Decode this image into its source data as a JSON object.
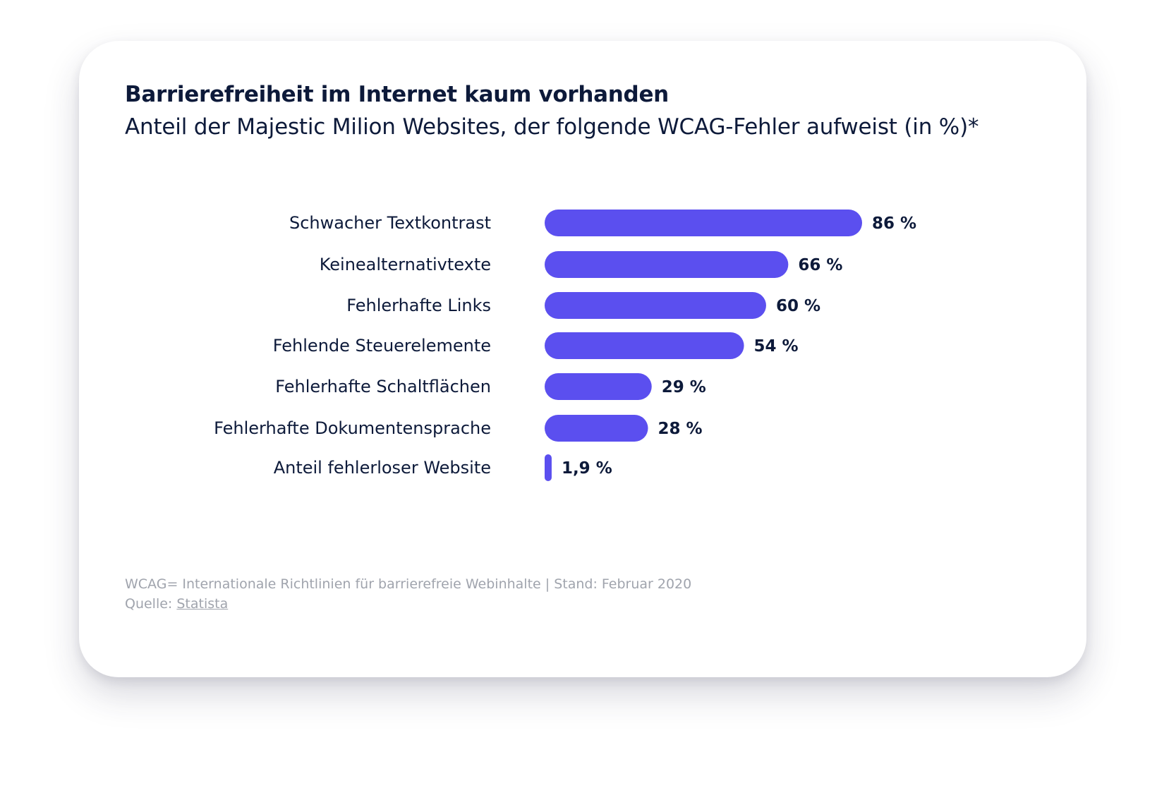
{
  "chart_data": {
    "type": "bar",
    "orientation": "horizontal",
    "title": "Barrierefreiheit im Internet kaum vorhanden",
    "subtitle": "Anteil der Majestic Milion Websites, der folgende WCAG-Fehler aufweist (in %)*",
    "categories": [
      "Schwacher Textkontrast",
      "Keinealternativtexte",
      "Fehlerhafte Links",
      "Fehlende Steuerelemente",
      "Fehlerhafte Schaltflächen",
      "Fehlerhafte Dokumentensprache",
      "Anteil fehlerloser Website"
    ],
    "values": [
      86,
      66,
      60,
      54,
      29,
      28,
      1.9
    ],
    "value_labels": [
      "86 %",
      "66 %",
      "60 %",
      "54 %",
      "29 %",
      "28 %",
      "1,9 %"
    ],
    "xlim": [
      0,
      86
    ],
    "xlabel": "",
    "ylabel": "",
    "grid": false,
    "bar_color": "#5b4fef"
  },
  "footer": {
    "note": "WCAG= Internationale Richtlinien für barrierefreie Webinhalte  | Stand: Februar 2020",
    "source_prefix": "Quelle: ",
    "source_link": "Statista"
  }
}
